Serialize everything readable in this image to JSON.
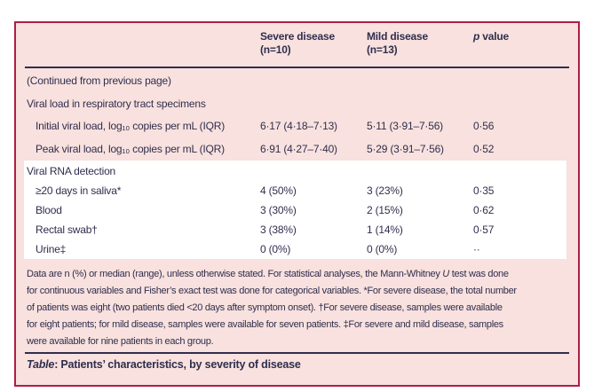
{
  "colors": {
    "border": "#ae1e45",
    "background": "#f8e1de",
    "band": "#ffffff",
    "text": "#302e4e"
  },
  "table": {
    "columns": {
      "severe_line1": "Severe disease",
      "severe_line2": "(n=10)",
      "mild_line1": "Mild disease",
      "mild_line2": "(n=13)",
      "p_italic": "p",
      "p_rest": " value"
    },
    "rows": [
      {
        "type": "note",
        "label": "(Continued from previous page)",
        "severe": "",
        "mild": "",
        "p": ""
      },
      {
        "type": "section",
        "label": "Viral load in respiratory tract specimens",
        "severe": "",
        "mild": "",
        "p": ""
      },
      {
        "type": "data",
        "label": "Initial viral load, log₁₀ copies per mL (IQR)",
        "severe": "6·17 (4·18–7·13)",
        "mild": "5·11 (3·91–7·56)",
        "p": "0·56"
      },
      {
        "type": "data",
        "label": "Peak viral load, log₁₀ copies per mL (IQR)",
        "severe": "6·91 (4·27–7·40)",
        "mild": "5·29 (3·91–7·56)",
        "p": "0·52"
      },
      {
        "type": "section",
        "label": "Viral RNA detection",
        "severe": "",
        "mild": "",
        "p": ""
      },
      {
        "type": "data",
        "label": "≥20 days in saliva*",
        "severe": "4 (50%)",
        "mild": "3 (23%)",
        "p": "0·35"
      },
      {
        "type": "data",
        "label": "Blood",
        "severe": "3 (30%)",
        "mild": "2 (15%)",
        "p": "0·62"
      },
      {
        "type": "data",
        "label": "Rectal swab†",
        "severe": "3 (38%)",
        "mild": "1 (14%)",
        "p": "0·57"
      },
      {
        "type": "data",
        "label": "Urine‡",
        "severe": "0 (0%)",
        "mild": "0 (0%)",
        "p": "··"
      }
    ],
    "footnote": {
      "line1_pre": "Data are n (%) or median (range), unless otherwise stated. For statistical analyses, the Mann-Whitney ",
      "line1_italic": "U",
      "line1_post": " test was done",
      "line2": "for continuous variables and Fisher’s exact test was done for categorical variables. *For severe disease, the total number",
      "line3": "of patients was eight (two patients died <20 days after symptom onset). †For severe disease, samples were available",
      "line4": "for eight patients; for mild disease, samples were available for seven patients. ‡For severe and mild disease, samples",
      "line5": "were available for nine patients in each group."
    },
    "caption_label": "Table",
    "caption_rest": ": Patients’ characteristics, by severity of disease"
  }
}
